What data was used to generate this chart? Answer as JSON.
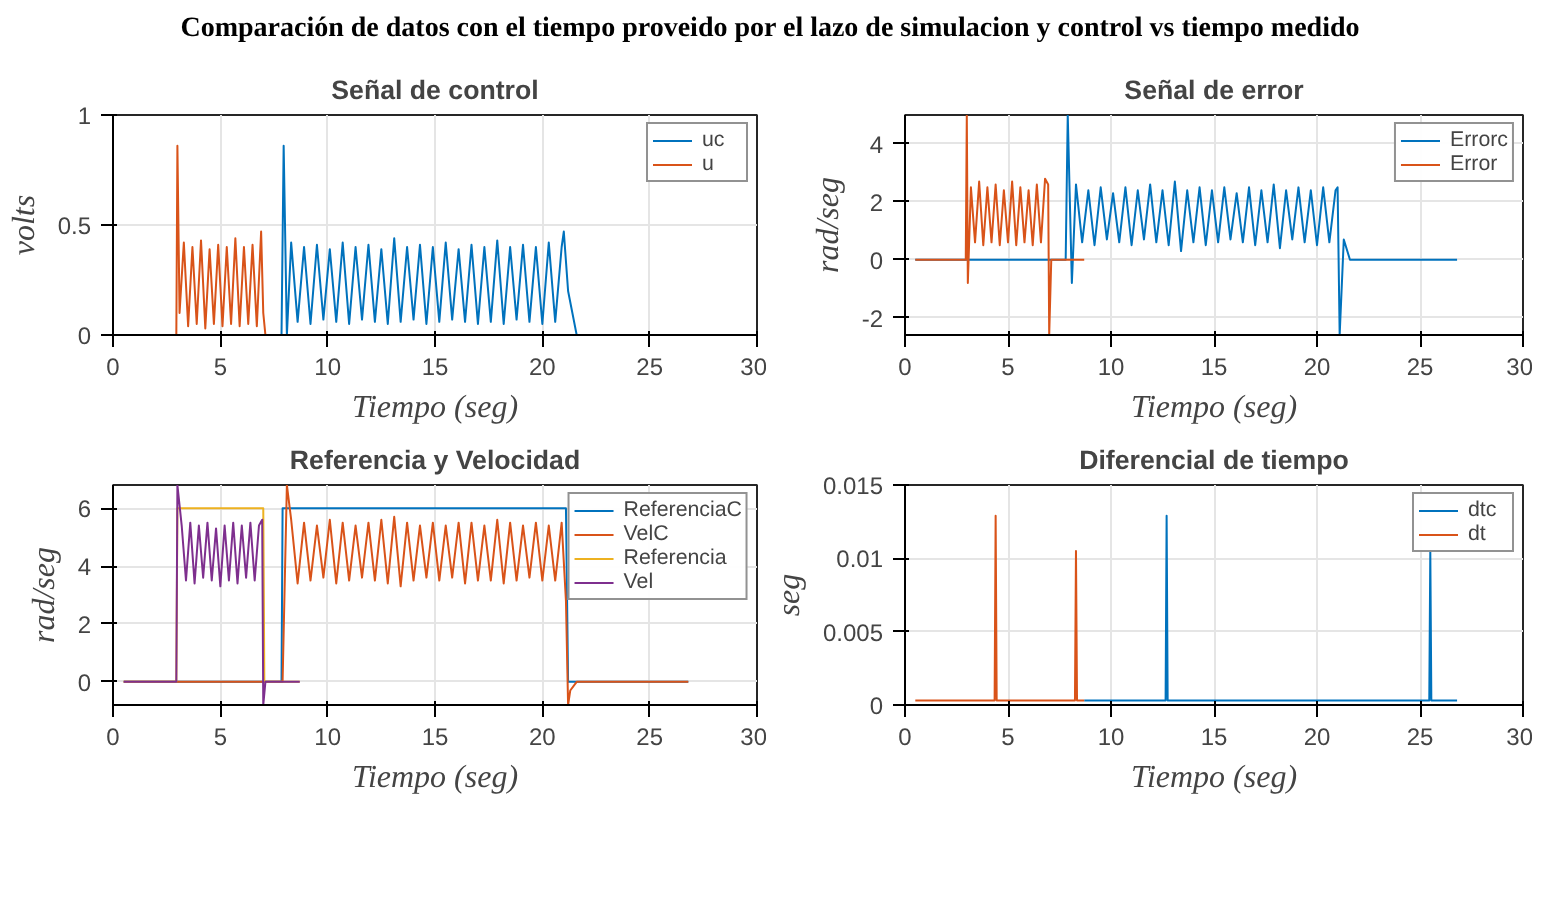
{
  "chart_data": [
    {
      "type": "other",
      "title": "Comparación de datos con el tiempo proveido por el lazo de simulacion y control vs tiempo medido"
    },
    {
      "type": "line",
      "title": "Señal de control",
      "xlabel": "Tiempo (seg)",
      "ylabel": "volts",
      "xlim": [
        0,
        30
      ],
      "xticks": [
        0,
        5,
        10,
        15,
        20,
        25,
        30
      ],
      "ylim": [
        0,
        1
      ],
      "yticks": [
        0,
        0.5,
        1
      ],
      "grid": true,
      "legend": "top right",
      "series": [
        {
          "name": "uc",
          "color": "#0072bd",
          "x": [
            0.5,
            7.85,
            7.95,
            8.1,
            8.3,
            8.6,
            8.9,
            9.2,
            9.5,
            9.8,
            10.1,
            10.4,
            10.7,
            11.0,
            11.3,
            11.6,
            11.9,
            12.2,
            12.5,
            12.8,
            13.1,
            13.4,
            13.7,
            14.0,
            14.3,
            14.6,
            14.9,
            15.2,
            15.5,
            15.8,
            16.1,
            16.4,
            16.7,
            17.0,
            17.3,
            17.6,
            17.9,
            18.2,
            18.5,
            18.8,
            19.1,
            19.4,
            19.7,
            20.0,
            20.3,
            20.6,
            20.9,
            21.0,
            21.2,
            21.6,
            26.8
          ],
          "values": [
            0,
            0,
            0.86,
            0,
            0.42,
            0.06,
            0.4,
            0.05,
            0.41,
            0.07,
            0.39,
            0.06,
            0.42,
            0.05,
            0.4,
            0.07,
            0.41,
            0.06,
            0.39,
            0.05,
            0.44,
            0.06,
            0.4,
            0.07,
            0.41,
            0.05,
            0.4,
            0.06,
            0.42,
            0.07,
            0.39,
            0.06,
            0.41,
            0.05,
            0.4,
            0.06,
            0.43,
            0.05,
            0.4,
            0.07,
            0.41,
            0.06,
            0.4,
            0.05,
            0.42,
            0.06,
            0.4,
            0.47,
            0.2,
            0,
            0
          ]
        },
        {
          "name": "u",
          "color": "#d95319",
          "x": [
            0.5,
            2.95,
            3.0,
            3.1,
            3.3,
            3.5,
            3.7,
            3.9,
            4.1,
            4.3,
            4.5,
            4.7,
            4.9,
            5.1,
            5.3,
            5.5,
            5.7,
            5.9,
            6.1,
            6.3,
            6.5,
            6.7,
            6.9,
            7.0,
            7.1,
            8.7
          ],
          "values": [
            0,
            0,
            0.86,
            0.1,
            0.42,
            0.04,
            0.4,
            0.05,
            0.43,
            0.03,
            0.39,
            0.05,
            0.41,
            0.04,
            0.4,
            0.05,
            0.44,
            0.04,
            0.4,
            0.05,
            0.41,
            0.04,
            0.47,
            0.1,
            0,
            0
          ]
        }
      ]
    },
    {
      "type": "line",
      "title": "Señal de error",
      "xlabel": "Tiempo (seg)",
      "ylabel": "rad/seg",
      "xlim": [
        0,
        30
      ],
      "xticks": [
        0,
        5,
        10,
        15,
        20,
        25,
        30
      ],
      "ylim": [
        -2.6,
        5
      ],
      "yticks": [
        -2,
        0,
        2,
        4
      ],
      "grid": true,
      "legend": "top right",
      "series": [
        {
          "name": "Errorc",
          "color": "#0072bd",
          "x": [
            0.5,
            7.8,
            7.9,
            8.1,
            8.3,
            8.6,
            8.9,
            9.2,
            9.5,
            9.8,
            10.1,
            10.4,
            10.7,
            11.0,
            11.3,
            11.6,
            11.9,
            12.2,
            12.5,
            12.8,
            13.1,
            13.4,
            13.7,
            14.0,
            14.3,
            14.6,
            14.9,
            15.2,
            15.5,
            15.8,
            16.1,
            16.4,
            16.7,
            17.0,
            17.3,
            17.6,
            17.9,
            18.2,
            18.5,
            18.8,
            19.1,
            19.4,
            19.7,
            20.0,
            20.3,
            20.6,
            20.9,
            21.0,
            21.1,
            21.3,
            21.6,
            26.8
          ],
          "values": [
            0,
            0,
            5,
            -0.8,
            2.6,
            0.6,
            2.4,
            0.5,
            2.5,
            0.7,
            2.3,
            0.6,
            2.5,
            0.5,
            2.4,
            0.7,
            2.6,
            0.6,
            2.4,
            0.5,
            2.7,
            0.3,
            2.4,
            0.6,
            2.5,
            0.5,
            2.4,
            0.6,
            2.5,
            0.7,
            2.3,
            0.6,
            2.5,
            0.5,
            2.4,
            0.6,
            2.6,
            0.4,
            2.4,
            0.7,
            2.5,
            0.6,
            2.4,
            0.5,
            2.5,
            0.6,
            2.4,
            2.5,
            -2.6,
            0.7,
            0,
            0
          ]
        },
        {
          "name": "Error",
          "color": "#d95319",
          "x": [
            0.5,
            2.95,
            3.0,
            3.05,
            3.2,
            3.4,
            3.6,
            3.8,
            4.0,
            4.2,
            4.4,
            4.6,
            4.8,
            5.0,
            5.2,
            5.4,
            5.6,
            5.8,
            6.0,
            6.2,
            6.4,
            6.6,
            6.8,
            6.95,
            7.0,
            7.1,
            8.7
          ],
          "values": [
            0,
            0,
            5,
            -0.8,
            2.5,
            0.6,
            2.7,
            0.5,
            2.5,
            0.6,
            2.6,
            0.5,
            2.4,
            0.6,
            2.7,
            0.5,
            2.5,
            0.6,
            2.4,
            0.5,
            2.6,
            0.6,
            2.8,
            2.6,
            -2.6,
            0,
            0
          ]
        }
      ]
    },
    {
      "type": "line",
      "title": "Referencia y Velocidad",
      "xlabel": "Tiempo (seg)",
      "ylabel": "rad/seg",
      "xlim": [
        0,
        30
      ],
      "xticks": [
        0,
        5,
        10,
        15,
        20,
        25,
        30
      ],
      "ylim": [
        -0.8,
        6.8
      ],
      "yticks": [
        0,
        2,
        4,
        6
      ],
      "grid": true,
      "legend": "top right",
      "series": [
        {
          "name": "ReferenciaC",
          "color": "#0072bd",
          "x": [
            0.5,
            7.85,
            7.9,
            21.1,
            21.2,
            26.8
          ],
          "values": [
            0,
            0,
            6,
            6,
            0,
            0
          ]
        },
        {
          "name": "VelC",
          "color": "#d95319",
          "x": [
            0.5,
            7.9,
            8.1,
            8.3,
            8.6,
            8.9,
            9.2,
            9.5,
            9.8,
            10.1,
            10.4,
            10.7,
            11.0,
            11.3,
            11.6,
            11.9,
            12.2,
            12.5,
            12.8,
            13.1,
            13.4,
            13.7,
            14.0,
            14.3,
            14.6,
            14.9,
            15.2,
            15.5,
            15.8,
            16.1,
            16.4,
            16.7,
            17.0,
            17.3,
            17.6,
            17.9,
            18.2,
            18.5,
            18.8,
            19.1,
            19.4,
            19.7,
            20.0,
            20.3,
            20.6,
            20.9,
            21.1,
            21.2,
            21.3,
            21.6,
            26.8
          ],
          "values": [
            0,
            0,
            6.8,
            5.6,
            3.4,
            5.5,
            3.5,
            5.4,
            3.6,
            5.6,
            3.4,
            5.5,
            3.5,
            5.4,
            3.6,
            5.5,
            3.5,
            5.6,
            3.4,
            5.7,
            3.3,
            5.5,
            3.5,
            5.4,
            3.6,
            5.5,
            3.5,
            5.4,
            3.6,
            5.5,
            3.4,
            5.5,
            3.5,
            5.4,
            3.5,
            5.6,
            3.4,
            5.5,
            3.5,
            5.4,
            3.6,
            5.5,
            3.5,
            5.4,
            3.5,
            5.5,
            2.8,
            -0.8,
            -0.3,
            0,
            0
          ]
        },
        {
          "name": "Referencia",
          "color": "#edb120",
          "x": [
            0.5,
            2.95,
            3.0,
            7.0,
            7.05,
            8.7
          ],
          "values": [
            0,
            0,
            6,
            6,
            0,
            0
          ]
        },
        {
          "name": "Vel",
          "color": "#7e2f8e",
          "x": [
            0.5,
            2.95,
            3.0,
            3.2,
            3.4,
            3.6,
            3.8,
            4.0,
            4.2,
            4.4,
            4.6,
            4.8,
            5.0,
            5.2,
            5.4,
            5.6,
            5.8,
            6.0,
            6.2,
            6.4,
            6.6,
            6.8,
            6.95,
            7.0,
            7.1,
            8.7
          ],
          "values": [
            0,
            0,
            6.8,
            5.4,
            3.5,
            5.5,
            3.4,
            5.4,
            3.6,
            5.5,
            3.5,
            5.3,
            3.3,
            5.4,
            3.5,
            5.5,
            3.4,
            5.4,
            3.6,
            5.5,
            3.5,
            5.4,
            5.6,
            -0.8,
            0,
            0
          ]
        }
      ]
    },
    {
      "type": "line",
      "title": "Diferencial de tiempo",
      "xlabel": "Tiempo (seg)",
      "ylabel": "seg",
      "xlim": [
        0,
        30
      ],
      "xticks": [
        0,
        5,
        10,
        15,
        20,
        25,
        30
      ],
      "ylim": [
        0,
        0.015
      ],
      "yticks": [
        0,
        0.005,
        0.01,
        0.015
      ],
      "grid": true,
      "legend": "top right",
      "series": [
        {
          "name": "dtc",
          "color": "#0072bd",
          "x": [
            8.7,
            12.65,
            12.7,
            12.75,
            25.45,
            25.5,
            25.55,
            26.8
          ],
          "values": [
            0.0003,
            0.0003,
            0.0129,
            0.0003,
            0.0003,
            0.0105,
            0.0003,
            0.0003
          ]
        },
        {
          "name": "dt",
          "color": "#d95319",
          "x": [
            0.5,
            4.35,
            4.4,
            4.45,
            8.25,
            8.3,
            8.35,
            8.7
          ],
          "values": [
            0.0003,
            0.0003,
            0.0129,
            0.0003,
            0.0003,
            0.0105,
            0.0003,
            0.0003
          ]
        }
      ]
    }
  ]
}
